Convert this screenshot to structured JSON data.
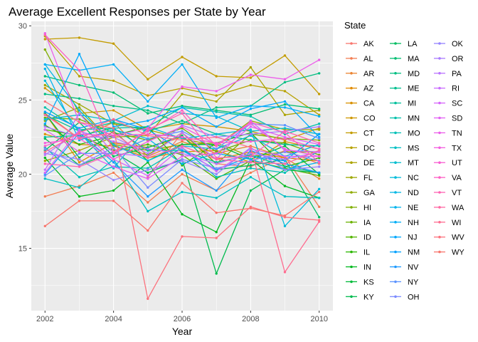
{
  "chart_data": {
    "type": "line",
    "title": "Average Excellent Responses per State by Year",
    "xlabel": "Year",
    "ylabel": "Average Value",
    "x": [
      2002,
      2003,
      2004,
      2005,
      2006,
      2007,
      2008,
      2009,
      2010
    ],
    "xlim": [
      2001.6,
      2010.4
    ],
    "ylim": [
      10.8,
      30.3
    ],
    "x_ticks": [
      2002,
      2004,
      2006,
      2008,
      2010
    ],
    "y_ticks": [
      15,
      20,
      25,
      30
    ],
    "grid": true,
    "legend": {
      "title": "State",
      "placement": "right",
      "columns": 3
    },
    "series": [
      {
        "name": "AK",
        "color": "#F8766D",
        "values": [
          null,
          null,
          null,
          19.8,
          22.8,
          20.7,
          20.5,
          21.6,
          20.7
        ]
      },
      {
        "name": "AL",
        "color": "#F27D52",
        "values": [
          18.5,
          19.2,
          20.1,
          18.1,
          20.0,
          18.9,
          20.1,
          21.2,
          17.8
        ]
      },
      {
        "name": "AR",
        "color": "#EA8331",
        "values": [
          24.1,
          22.4,
          23.5,
          21.2,
          22.2,
          21.4,
          21.9,
          21.1,
          19.7
        ]
      },
      {
        "name": "AZ",
        "color": "#E18A00",
        "values": [
          24.1,
          20.8,
          22.1,
          21.8,
          22.5,
          21.0,
          21.5,
          21.1,
          20.9
        ]
      },
      {
        "name": "CA",
        "color": "#D89000",
        "values": [
          22.7,
          22.0,
          21.9,
          21.1,
          21.5,
          21.6,
          20.8,
          22.2,
          21.7
        ]
      },
      {
        "name": "CO",
        "color": "#CE9700",
        "values": [
          25.8,
          24.1,
          24.3,
          23.0,
          23.4,
          23.2,
          22.9,
          22.3,
          23.1
        ]
      },
      {
        "name": "CT",
        "color": "#C39C00",
        "values": [
          29.1,
          29.2,
          28.8,
          26.4,
          27.9,
          26.6,
          26.5,
          28.0,
          25.4
        ]
      },
      {
        "name": "DC",
        "color": "#B7A100",
        "values": [
          29.3,
          26.6,
          26.3,
          25.3,
          25.8,
          25.3,
          26.0,
          25.6,
          24.0
        ]
      },
      {
        "name": "DE",
        "color": "#ABA300",
        "values": [
          20.9,
          21.6,
          22.5,
          22.6,
          25.4,
          24.9,
          27.2,
          24.0,
          24.3
        ]
      },
      {
        "name": "FL",
        "color": "#9DA700",
        "values": [
          26.0,
          24.7,
          23.4,
          23.0,
          22.4,
          21.9,
          23.6,
          23.0,
          23.0
        ]
      },
      {
        "name": "GA",
        "color": "#8FAA00",
        "values": [
          23.6,
          24.5,
          22.0,
          21.6,
          22.0,
          22.1,
          21.2,
          21.5,
          21.5
        ]
      },
      {
        "name": "HI",
        "color": "#7FAE00",
        "values": [
          28.4,
          24.1,
          21.9,
          21.3,
          22.8,
          20.7,
          22.7,
          22.4,
          22.3
        ]
      },
      {
        "name": "IA",
        "color": "#6BB100",
        "values": [
          23.8,
          23.7,
          22.8,
          22.3,
          23.1,
          21.5,
          22.3,
          22.1,
          21.3
        ]
      },
      {
        "name": "ID",
        "color": "#53B400",
        "values": [
          23.0,
          22.6,
          21.6,
          22.0,
          21.3,
          19.7,
          20.9,
          20.4,
          19.9
        ]
      },
      {
        "name": "IL",
        "color": "#2CB600",
        "values": [
          23.3,
          22.0,
          22.6,
          23.2,
          20.6,
          22.1,
          22.8,
          20.5,
          21.1
        ]
      },
      {
        "name": "IN",
        "color": "#00B81E",
        "values": [
          21.1,
          18.5,
          18.9,
          20.8,
          17.3,
          16.1,
          21.0,
          19.2,
          18.4
        ]
      },
      {
        "name": "KS",
        "color": "#00BA38",
        "values": [
          24.1,
          21.1,
          22.9,
          20.9,
          22.0,
          22.0,
          21.0,
          21.9,
          20.0
        ]
      },
      {
        "name": "KY",
        "color": "#00BB4E",
        "values": [
          22.4,
          20.6,
          21.5,
          20.1,
          21.0,
          13.3,
          18.9,
          20.3,
          20.1
        ]
      },
      {
        "name": "LA",
        "color": "#00BC61",
        "values": [
          21.6,
          23.5,
          21.2,
          21.8,
          22.6,
          20.3,
          20.6,
          21.0,
          17.1
        ]
      },
      {
        "name": "MA",
        "color": "#00BD71",
        "values": [
          26.6,
          26.0,
          25.5,
          24.1,
          24.6,
          24.3,
          24.0,
          24.7,
          24.4
        ]
      },
      {
        "name": "MD",
        "color": "#00BE81",
        "values": [
          25.4,
          25.1,
          24.6,
          24.3,
          23.4,
          24.5,
          24.6,
          26.2,
          26.8
        ]
      },
      {
        "name": "ME",
        "color": "#00BF8F",
        "values": [
          24.0,
          22.9,
          23.5,
          22.9,
          23.6,
          22.7,
          22.3,
          22.0,
          21.9
        ]
      },
      {
        "name": "MI",
        "color": "#00C09D",
        "values": [
          22.5,
          22.6,
          23.1,
          21.6,
          21.6,
          20.8,
          21.3,
          20.5,
          20.1
        ]
      },
      {
        "name": "MN",
        "color": "#00C0AA",
        "values": [
          24.5,
          23.0,
          23.1,
          23.2,
          24.5,
          24.2,
          23.9,
          22.7,
          23.4
        ]
      },
      {
        "name": "MO",
        "color": "#00C0B7",
        "values": [
          21.8,
          19.8,
          20.5,
          20.4,
          21.8,
          19.8,
          20.4,
          20.1,
          21.6
        ]
      },
      {
        "name": "MS",
        "color": "#00BFC3",
        "values": [
          19.7,
          19.1,
          21.0,
          17.5,
          18.8,
          18.4,
          19.8,
          18.5,
          18.4
        ]
      },
      {
        "name": "MT",
        "color": "#00BDCF",
        "values": [
          23.7,
          24.0,
          23.6,
          24.6,
          24.1,
          23.9,
          22.9,
          23.1,
          22.7
        ]
      },
      {
        "name": "NC",
        "color": "#00BBDA",
        "values": [
          26.3,
          22.8,
          20.4,
          23.2,
          22.4,
          22.7,
          23.0,
          16.5,
          19.0
        ]
      },
      {
        "name": "ND",
        "color": "#00B7E4",
        "values": [
          27.4,
          24.3,
          22.0,
          20.9,
          21.9,
          21.7,
          22.6,
          21.2,
          22.0
        ]
      },
      {
        "name": "NE",
        "color": "#00B3ED",
        "values": [
          27.1,
          22.3,
          23.0,
          22.4,
          20.7,
          21.4,
          21.0,
          20.3,
          20.8
        ]
      },
      {
        "name": "NH",
        "color": "#00AEF6",
        "values": [
          27.4,
          27.0,
          27.4,
          24.9,
          27.4,
          23.8,
          24.6,
          24.5,
          23.9
        ]
      },
      {
        "name": "NJ",
        "color": "#00A8FD",
        "values": [
          23.4,
          28.1,
          23.2,
          23.6,
          24.5,
          23.2,
          24.4,
          24.9,
          22.5
        ]
      },
      {
        "name": "NM",
        "color": "#00A1FF",
        "values": [
          24.2,
          23.1,
          23.7,
          23.0,
          21.6,
          20.3,
          21.2,
          20.9,
          22.7
        ]
      },
      {
        "name": "NV",
        "color": "#1D9AFF",
        "values": [
          20.0,
          22.8,
          20.8,
          18.5,
          20.3,
          18.9,
          21.6,
          20.7,
          20.1
        ]
      },
      {
        "name": "NY",
        "color": "#5B93FF",
        "values": [
          19.9,
          21.4,
          21.4,
          22.4,
          22.9,
          21.7,
          23.4,
          23.3,
          22.4
        ]
      },
      {
        "name": "OH",
        "color": "#7C8BFF",
        "values": [
          21.7,
          20.6,
          21.8,
          19.1,
          21.0,
          20.4,
          20.9,
          21.5,
          20.9
        ]
      },
      {
        "name": "OK",
        "color": "#9583FF",
        "values": [
          21.4,
          21.0,
          19.6,
          20.3,
          20.9,
          20.0,
          21.8,
          20.3,
          20.5
        ]
      },
      {
        "name": "OR",
        "color": "#A97BFF",
        "values": [
          23.2,
          22.5,
          22.5,
          21.4,
          23.3,
          22.5,
          22.7,
          22.9,
          23.2
        ]
      },
      {
        "name": "PA",
        "color": "#BA73FF",
        "values": [
          21.3,
          22.9,
          22.2,
          21.7,
          21.4,
          20.7,
          21.4,
          21.0,
          21.5
        ]
      },
      {
        "name": "RI",
        "color": "#C96CFF",
        "values": [
          20.3,
          24.1,
          21.4,
          21.2,
          22.8,
          21.0,
          23.6,
          21.6,
          21.5
        ]
      },
      {
        "name": "SC",
        "color": "#D665FA",
        "values": [
          20.1,
          23.0,
          21.0,
          19.9,
          21.8,
          20.2,
          21.7,
          21.2,
          21.2
        ]
      },
      {
        "name": "SD",
        "color": "#E260F3",
        "values": [
          23.0,
          21.5,
          20.5,
          19.7,
          21.2,
          21.4,
          23.2,
          22.5,
          22.0
        ]
      },
      {
        "name": "TN",
        "color": "#EC5EEA",
        "values": [
          29.5,
          23.5,
          22.6,
          23.1,
          25.9,
          25.6,
          26.7,
          26.4,
          27.7
        ]
      },
      {
        "name": "TX",
        "color": "#F35CDF",
        "values": [
          22.1,
          22.4,
          21.0,
          22.2,
          23.2,
          22.0,
          23.4,
          21.7,
          21.2
        ]
      },
      {
        "name": "UT",
        "color": "#F95CD2",
        "values": [
          21.9,
          22.7,
          22.6,
          22.7,
          22.5,
          22.1,
          22.2,
          22.4,
          21.7
        ]
      },
      {
        "name": "VA",
        "color": "#FD5EC3",
        "values": [
          29.4,
          27.0,
          21.5,
          22.9,
          24.3,
          21.9,
          23.5,
          22.8,
          20.8
        ]
      },
      {
        "name": "VT",
        "color": "#FF62B3",
        "values": [
          20.7,
          20.5,
          21.4,
          23.0,
          24.1,
          21.1,
          21.2,
          22.9,
          22.1
        ]
      },
      {
        "name": "WA",
        "color": "#FF67A2",
        "values": [
          24.0,
          22.4,
          22.8,
          21.1,
          21.9,
          21.0,
          20.8,
          20.7,
          21.6
        ]
      },
      {
        "name": "WI",
        "color": "#FF6C90",
        "values": [
          21.5,
          22.8,
          23.7,
          22.6,
          22.3,
          22.5,
          21.8,
          13.4,
          16.8
        ]
      },
      {
        "name": "WV",
        "color": "#FC727D",
        "values": [
          24.9,
          23.5,
          23.1,
          11.6,
          15.8,
          15.7,
          17.8,
          17.1,
          16.9
        ]
      },
      {
        "name": "WY",
        "color": "#F8766D",
        "values": [
          16.5,
          18.2,
          18.2,
          16.2,
          19.4,
          17.4,
          17.7,
          17.2,
          18.8
        ]
      }
    ]
  }
}
